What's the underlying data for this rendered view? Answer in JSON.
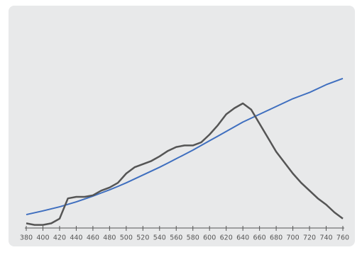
{
  "chart_data": {
    "type": "line",
    "x": [
      380,
      390,
      400,
      410,
      420,
      430,
      440,
      450,
      460,
      470,
      480,
      490,
      500,
      510,
      520,
      530,
      540,
      550,
      560,
      570,
      580,
      590,
      600,
      610,
      620,
      630,
      640,
      650,
      660,
      670,
      680,
      690,
      700,
      710,
      720,
      730,
      740,
      750,
      760
    ],
    "series": [
      {
        "color": "#3f6fbf",
        "values": [
          8.6,
          9.8,
          11,
          12.3,
          13.6,
          15.2,
          16.8,
          18.6,
          20.5,
          22.5,
          24.5,
          26.7,
          29,
          31.5,
          34,
          36.5,
          39,
          41.7,
          44.5,
          47.2,
          50,
          53,
          56,
          59,
          62,
          65,
          68,
          70.5,
          73,
          75.5,
          78,
          80.5,
          83,
          85,
          87,
          89.5,
          92,
          94,
          96
        ]
      },
      {
        "color": "#555555",
        "values": [
          3,
          2,
          2,
          3,
          6,
          19,
          20,
          20,
          21,
          24,
          26,
          29,
          35,
          39,
          41,
          43,
          46,
          49.5,
          52,
          53,
          53,
          55,
          60,
          66,
          73,
          77,
          80,
          76,
          67,
          58,
          49,
          42,
          35,
          29,
          24,
          19,
          15,
          10,
          6
        ]
      }
    ],
    "xlim": [
      380,
      760
    ],
    "xticks": [
      380,
      400,
      420,
      440,
      460,
      480,
      500,
      520,
      540,
      560,
      580,
      600,
      620,
      640,
      660,
      680,
      700,
      720,
      740,
      760
    ],
    "ylim": [
      0,
      100
    ]
  }
}
